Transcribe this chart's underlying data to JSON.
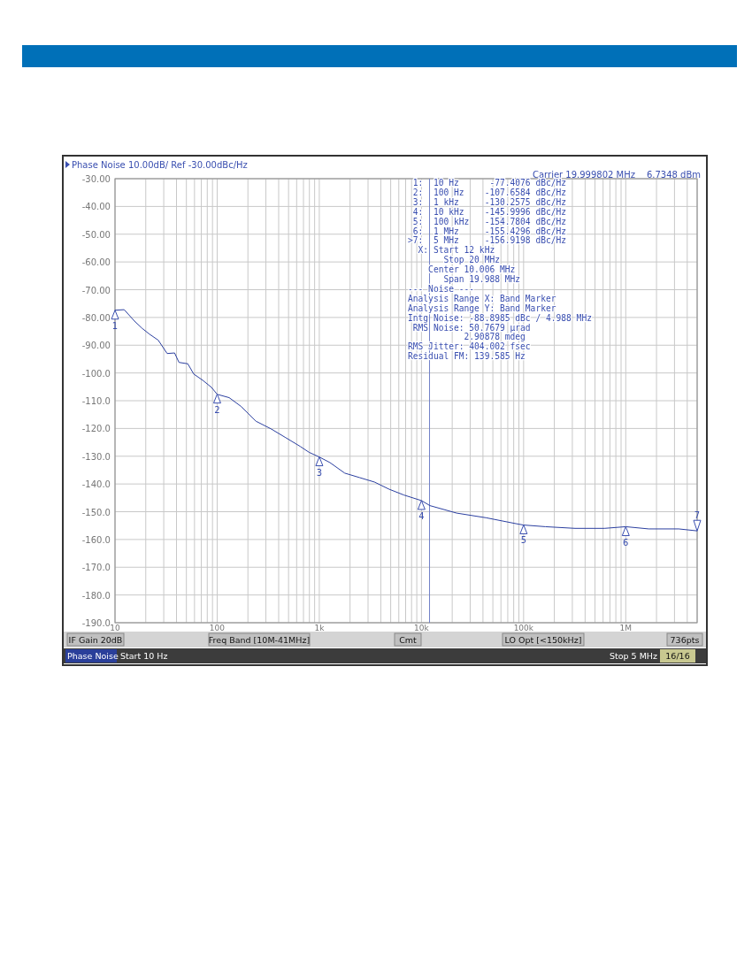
{
  "chart_data": {
    "type": "line",
    "title": "Phase Noise 10.00dB/ Ref -30.00dBc/Hz",
    "log": "x",
    "grid": true,
    "marker": "none",
    "line_style": "solid",
    "xlim": [
      10,
      5000000
    ],
    "ylim": [
      -190,
      -30
    ],
    "xticks": [
      {
        "value": 10,
        "label": "10"
      },
      {
        "value": 100,
        "label": "100"
      },
      {
        "value": 1000,
        "label": "1k"
      },
      {
        "value": 10000,
        "label": "10k"
      },
      {
        "value": 100000,
        "label": "100k"
      },
      {
        "value": 1000000,
        "label": "1M"
      }
    ],
    "yticks": [
      {
        "value": -30,
        "label": "-30.00"
      },
      {
        "value": -40,
        "label": "-40.00"
      },
      {
        "value": -50,
        "label": "-50.00"
      },
      {
        "value": -60,
        "label": "-60.00"
      },
      {
        "value": -70,
        "label": "-70.00"
      },
      {
        "value": -80,
        "label": "-80.00"
      },
      {
        "value": -90,
        "label": "-90.00"
      },
      {
        "value": -100,
        "label": "-100.0"
      },
      {
        "value": -110,
        "label": "-110.0"
      },
      {
        "value": -120,
        "label": "-120.0"
      },
      {
        "value": -130,
        "label": "-130.0"
      },
      {
        "value": -140,
        "label": "-140.0"
      },
      {
        "value": -150,
        "label": "-150.0"
      },
      {
        "value": -160,
        "label": "-160.0"
      },
      {
        "value": -170,
        "label": "-170.0"
      },
      {
        "value": -180,
        "label": "-180.0"
      },
      {
        "value": -190,
        "label": "-190.0"
      }
    ],
    "series": [
      {
        "color": "#2b3fa0",
        "x": [
          10,
          12.3,
          15.5,
          18.4,
          21.7,
          26.5,
          32.4,
          38.3,
          42.3,
          51.6,
          59,
          72,
          88,
          100,
          131,
          172,
          240,
          335,
          468,
          652,
          794,
          1000,
          1271,
          1774,
          2477,
          3459,
          4831,
          6745,
          10000,
          12100,
          22100,
          43200,
          84000,
          100000,
          164000,
          319000,
          619000,
          1000000,
          1680000,
          3300000,
          5000000
        ],
        "values": [
          -77.4,
          -77.2,
          -81.3,
          -83.9,
          -86,
          -88.2,
          -93,
          -92.8,
          -96.2,
          -96.7,
          -100.4,
          -102.6,
          -105.2,
          -107.7,
          -108.9,
          -112.1,
          -117.4,
          -120.1,
          -123.3,
          -126.5,
          -128.6,
          -130.3,
          -132.3,
          -136.1,
          -137.7,
          -139.3,
          -141.9,
          -144,
          -146,
          -147.8,
          -150.5,
          -152.2,
          -154.3,
          -154.8,
          -155.4,
          -156,
          -156,
          -155.4,
          -156.2,
          -156.2,
          -156.9
        ]
      }
    ],
    "ref_lines": [
      {
        "axis": "x",
        "value": 12000,
        "color": "#7080c8"
      }
    ],
    "annotations": [
      {
        "text": "1",
        "x": 10,
        "y": -77.4076
      },
      {
        "text": "2",
        "x": 100,
        "y": -107.6584
      },
      {
        "text": "3",
        "x": 1000,
        "y": -130.2575
      },
      {
        "text": "4",
        "x": 10000,
        "y": -145.9996
      },
      {
        "text": "5",
        "x": 100000,
        "y": -154.7804
      },
      {
        "text": "6",
        "x": 1000000,
        "y": -155.4296
      },
      {
        "text": "7",
        "x": 5000000,
        "y": -156.9198
      },
      "Carrier 19.999802 MHz",
      "6.7348 dBm",
      " 1:  10 Hz      -77.4076 dBc/Hz",
      " 2:  100 Hz    -107.6584 dBc/Hz",
      " 3:  1 kHz     -130.2575 dBc/Hz",
      " 4:  10 kHz    -145.9996 dBc/Hz",
      " 5:  100 kHz   -154.7804 dBc/Hz",
      " 6:  1 MHz     -155.4296 dBc/Hz",
      ">7:  5 MHz     -156.9198 dBc/Hz",
      "  X: Start 12 kHz",
      "       Stop 20 MHz",
      "    Center 10.006 MHz",
      "       Span 19.988 MHz",
      "--- Noise ---",
      "Analysis Range X: Band Marker",
      "Analysis Range Y: Band Marker",
      "Intg Noise: -88.8985 dBc / 4.988 MHz",
      " RMS Noise: 50.7679 µrad",
      "           2.90878 mdeg",
      "RMS Jitter: 404.002 fsec",
      "Residual FM: 139.585 Hz",
      "IF Gain 20dB",
      "Freq Band [10M-41MHz]",
      "Cmt",
      "LO Opt [<150kHz]",
      "736pts",
      "Phase Noise",
      "Start 10 Hz",
      "Stop 5 MHz",
      "16/16"
    ]
  }
}
